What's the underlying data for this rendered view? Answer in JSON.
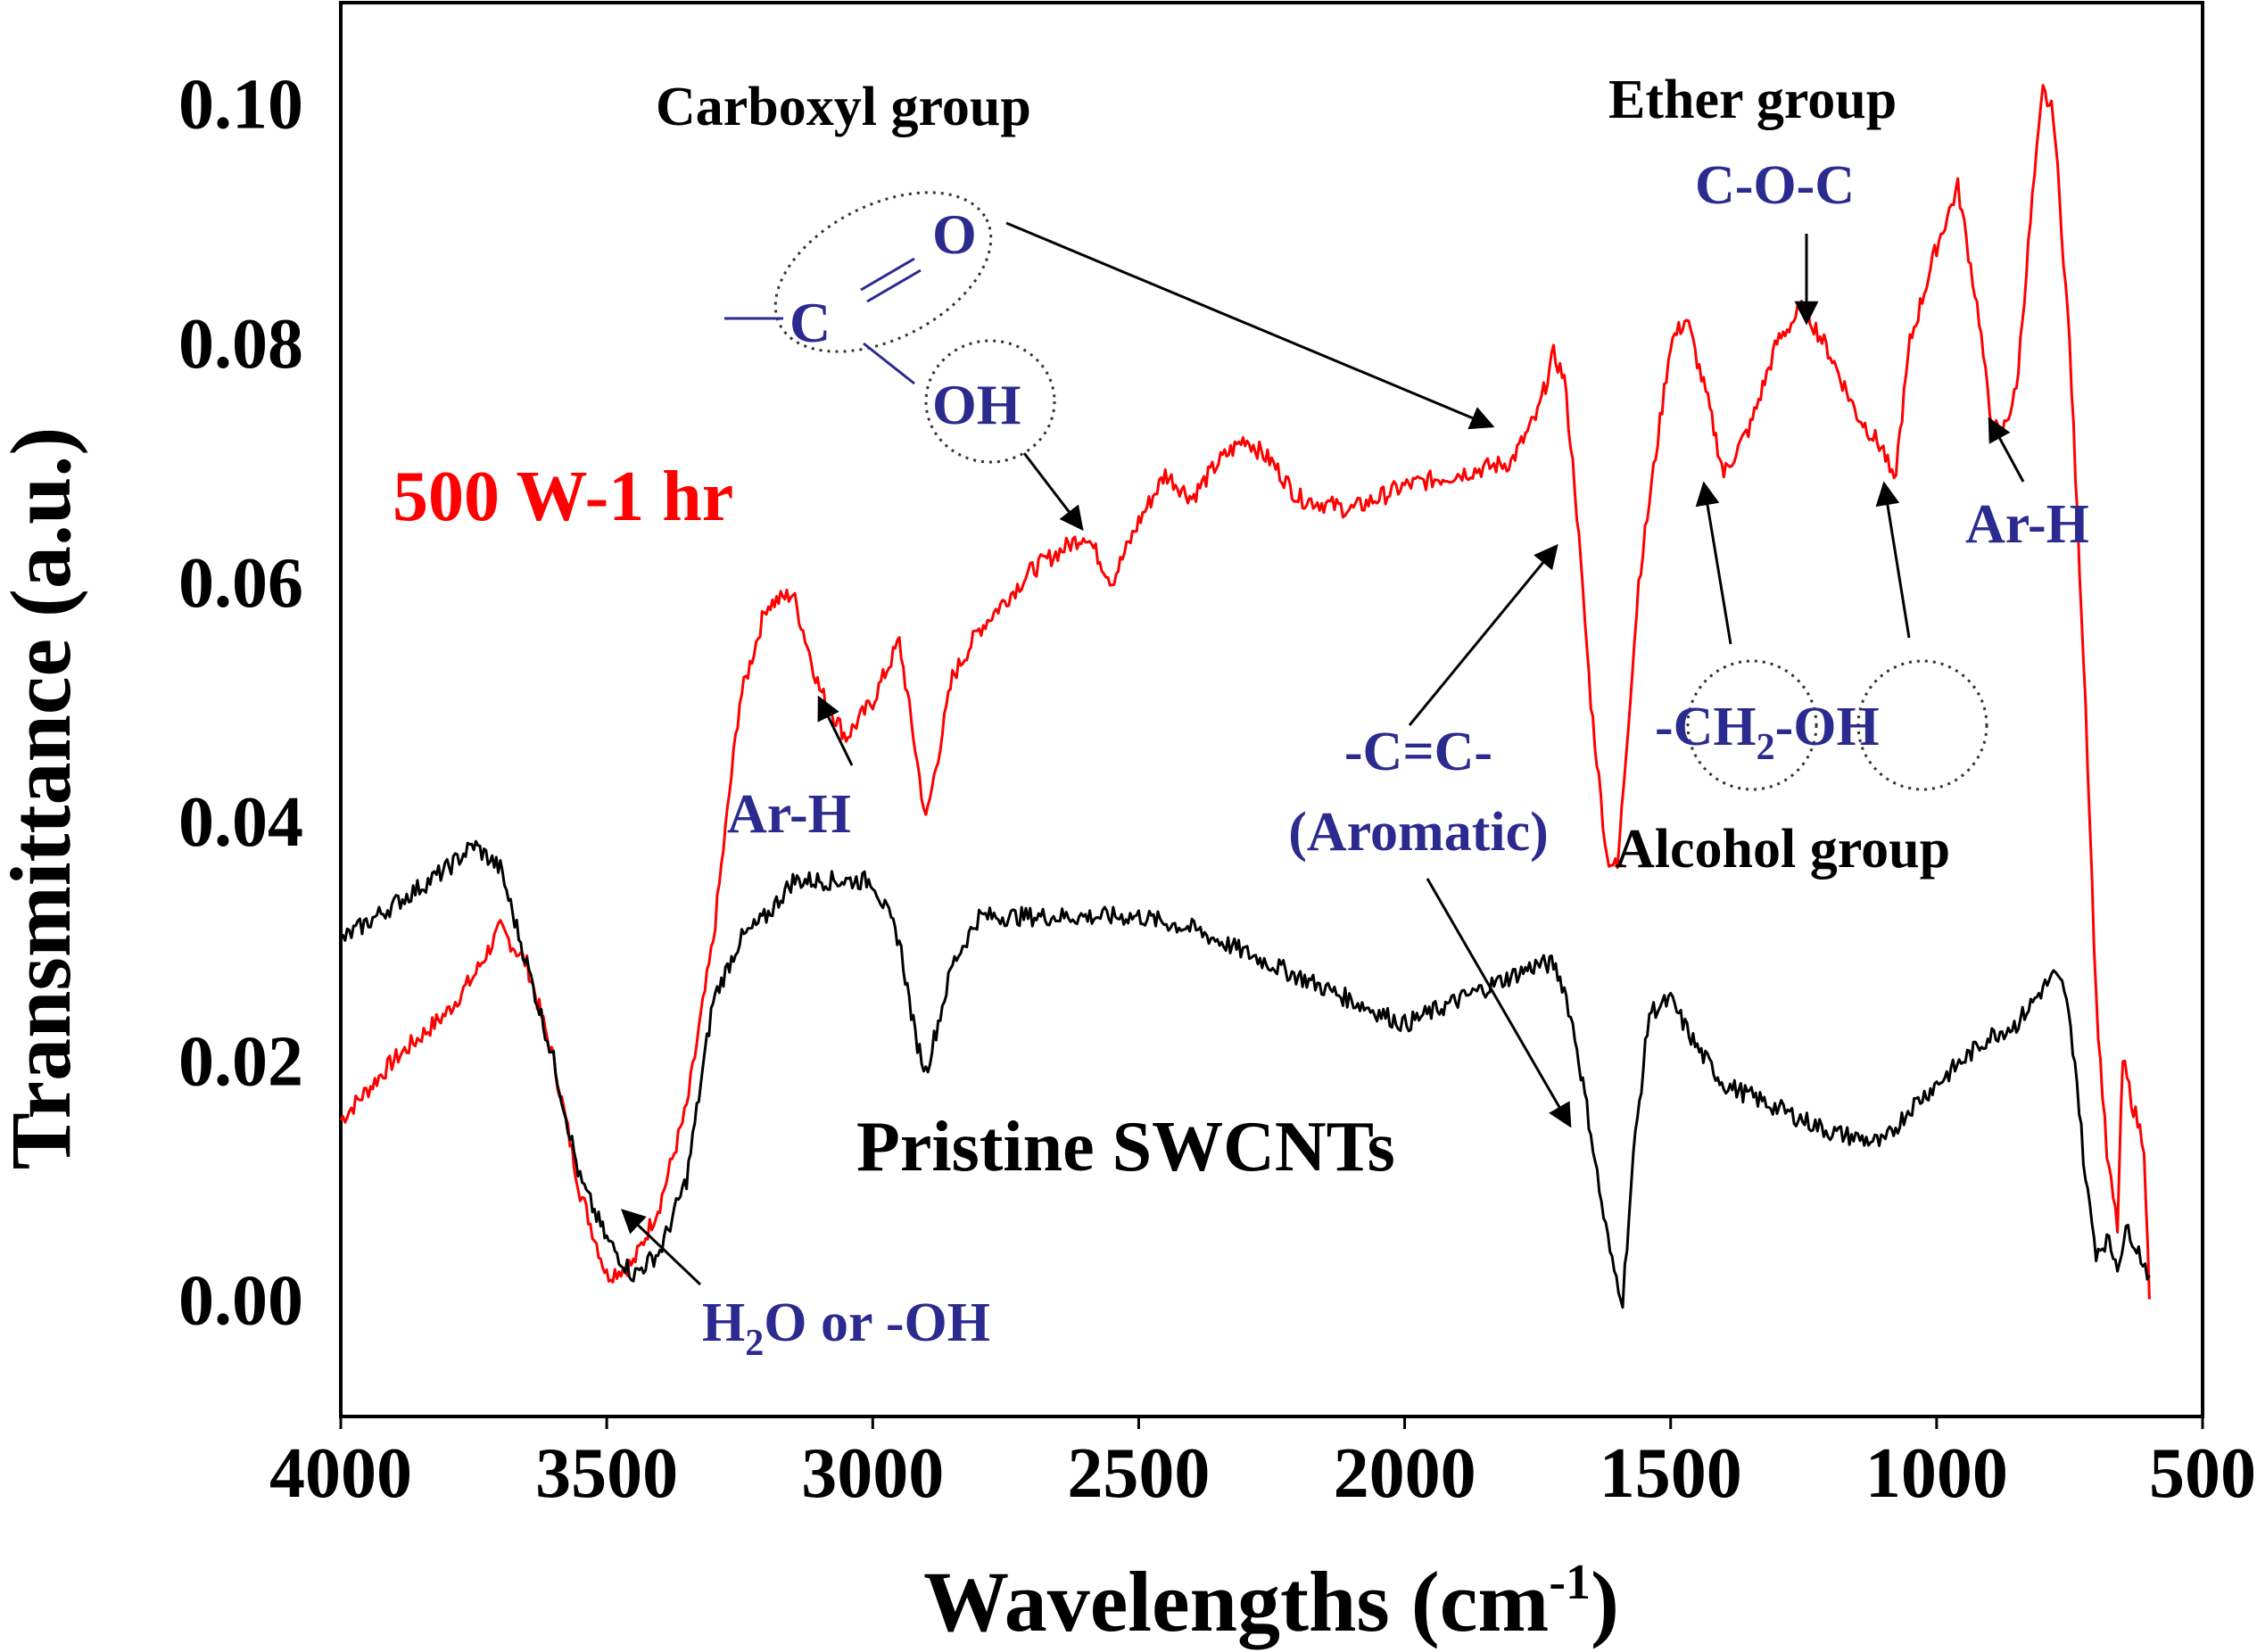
{
  "chart_data": {
    "type": "line",
    "title": "",
    "xlabel_main": "Wavelengths (cm",
    "xlabel_sup": "-1",
    "xlabel_end": ")",
    "ylabel": "Transmittance (a.u.)",
    "xlim": [
      4000,
      500
    ],
    "ylim": [
      -0.01,
      0.11
    ],
    "x_ticks": [
      4000,
      3500,
      3000,
      2500,
      2000,
      1500,
      1000,
      500
    ],
    "x_tick_labels": [
      "4000",
      "3500",
      "3000",
      "2500",
      "2000",
      "1500",
      "1000",
      "500"
    ],
    "y_ticks": [
      0.0,
      0.02,
      0.04,
      0.06,
      0.08,
      0.1
    ],
    "y_tick_labels": [
      "0.00",
      "0.02",
      "0.04",
      "0.06",
      "0.08",
      "0.10"
    ],
    "series": [
      {
        "name": "500 W-1 hr",
        "color": "#ff0000",
        "x": [
          4000,
          3900,
          3800,
          3750,
          3700,
          3650,
          3600,
          3550,
          3500,
          3450,
          3400,
          3350,
          3300,
          3250,
          3200,
          3150,
          3100,
          3050,
          3000,
          2950,
          2920,
          2900,
          2850,
          2800,
          2700,
          2600,
          2550,
          2500,
          2450,
          2400,
          2350,
          2300,
          2250,
          2200,
          2100,
          2000,
          1900,
          1800,
          1750,
          1720,
          1700,
          1680,
          1650,
          1620,
          1600,
          1560,
          1500,
          1470,
          1430,
          1400,
          1350,
          1300,
          1250,
          1200,
          1150,
          1100,
          1080,
          1050,
          1000,
          960,
          920,
          900,
          880,
          850,
          820,
          800,
          780,
          750,
          720,
          700,
          680,
          660,
          650,
          630,
          610,
          600
        ],
        "y": [
          0.015,
          0.02,
          0.024,
          0.027,
          0.031,
          0.028,
          0.02,
          0.009,
          0.002,
          0.003,
          0.008,
          0.016,
          0.03,
          0.05,
          0.058,
          0.059,
          0.051,
          0.047,
          0.05,
          0.055,
          0.046,
          0.04,
          0.052,
          0.056,
          0.061,
          0.064,
          0.06,
          0.065,
          0.069,
          0.067,
          0.07,
          0.072,
          0.07,
          0.067,
          0.066,
          0.068,
          0.069,
          0.07,
          0.074,
          0.079,
          0.077,
          0.068,
          0.05,
          0.037,
          0.036,
          0.06,
          0.08,
          0.082,
          0.075,
          0.069,
          0.073,
          0.08,
          0.083,
          0.079,
          0.074,
          0.071,
          0.068,
          0.08,
          0.088,
          0.093,
          0.082,
          0.074,
          0.072,
          0.076,
          0.092,
          0.101,
          0.099,
          0.08,
          0.05,
          0.025,
          0.012,
          0.006,
          0.02,
          0.016,
          0.013,
          0.0
        ]
      },
      {
        "name": "Pristine SWCNTs",
        "color": "#000000",
        "x": [
          4000,
          3900,
          3800,
          3750,
          3700,
          3650,
          3600,
          3550,
          3500,
          3450,
          3400,
          3350,
          3300,
          3250,
          3200,
          3150,
          3100,
          3050,
          3000,
          2950,
          2920,
          2900,
          2850,
          2800,
          2700,
          2600,
          2500,
          2400,
          2300,
          2200,
          2100,
          2000,
          1950,
          1900,
          1800,
          1750,
          1720,
          1700,
          1680,
          1650,
          1630,
          1610,
          1590,
          1570,
          1540,
          1500,
          1450,
          1400,
          1300,
          1200,
          1100,
          1050,
          1000,
          950,
          900,
          850,
          800,
          780,
          760,
          740,
          720,
          700,
          680,
          660,
          640,
          620,
          600
        ],
        "y": [
          0.03,
          0.033,
          0.036,
          0.038,
          0.036,
          0.028,
          0.02,
          0.01,
          0.005,
          0.002,
          0.004,
          0.01,
          0.025,
          0.03,
          0.032,
          0.035,
          0.035,
          0.035,
          0.035,
          0.03,
          0.022,
          0.019,
          0.028,
          0.032,
          0.032,
          0.032,
          0.032,
          0.031,
          0.029,
          0.027,
          0.025,
          0.023,
          0.024,
          0.025,
          0.027,
          0.028,
          0.028,
          0.026,
          0.022,
          0.014,
          0.008,
          0.003,
          0.0,
          0.012,
          0.024,
          0.025,
          0.021,
          0.018,
          0.016,
          0.014,
          0.013,
          0.016,
          0.018,
          0.02,
          0.022,
          0.023,
          0.026,
          0.027,
          0.026,
          0.02,
          0.01,
          0.004,
          0.005,
          0.003,
          0.006,
          0.004,
          0.002
        ]
      }
    ],
    "annotations": {
      "series_label_red": "500 W-1 hr",
      "series_label_black": "Pristine SWCNTs",
      "carboxyl_group": "Carboxyl group",
      "carboxyl_O": "O",
      "carboxyl_C": "C",
      "carboxyl_OH": "OH",
      "ether_group": "Ether group",
      "coc": "C-O-C",
      "arh_left": "Ar-H",
      "arh_right": "Ar-H",
      "ccc": "-C=C-",
      "aromatic": "(Aromatic)",
      "ch2oh_a": "-CH",
      "ch2oh_sub": "2",
      "ch2oh_b": "-OH",
      "alcohol_group": "Alcohol group",
      "h2o_a": "H",
      "h2o_sub": "2",
      "h2o_b": "O or -OH"
    },
    "colors": {
      "red": "#ff0000",
      "black": "#000000",
      "annotation_blue": "#2b2b8f"
    }
  }
}
